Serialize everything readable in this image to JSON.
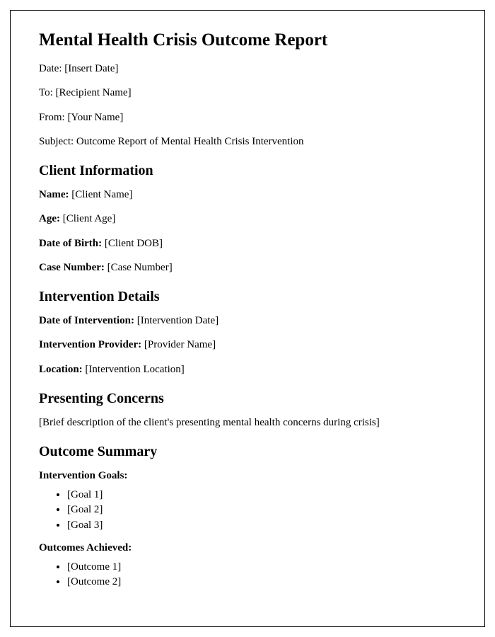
{
  "title": "Mental Health Crisis Outcome Report",
  "meta": {
    "date_label": "Date: ",
    "date_value": "[Insert Date]",
    "to_label": "To: ",
    "to_value": "[Recipient Name]",
    "from_label": "From: ",
    "from_value": "[Your Name]",
    "subject_label": "Subject: ",
    "subject_value": "Outcome Report of Mental Health Crisis Intervention"
  },
  "client_info": {
    "heading": "Client Information",
    "name_label": "Name:",
    "name_value": " [Client Name]",
    "age_label": "Age:",
    "age_value": " [Client Age]",
    "dob_label": "Date of Birth:",
    "dob_value": " [Client DOB]",
    "case_label": "Case Number:",
    "case_value": " [Case Number]"
  },
  "intervention": {
    "heading": "Intervention Details",
    "date_label": "Date of Intervention:",
    "date_value": " [Intervention Date]",
    "provider_label": "Intervention Provider:",
    "provider_value": " [Provider Name]",
    "location_label": "Location:",
    "location_value": " [Intervention Location]"
  },
  "concerns": {
    "heading": "Presenting Concerns",
    "body": "[Brief description of the client's presenting mental health concerns during crisis]"
  },
  "outcome": {
    "heading": "Outcome Summary",
    "goals_heading": "Intervention Goals:",
    "goals": [
      "[Goal 1]",
      "[Goal 2]",
      "[Goal 3]"
    ],
    "achieved_heading": "Outcomes Achieved:",
    "achieved": [
      "[Outcome 1]",
      "[Outcome 2]"
    ]
  }
}
